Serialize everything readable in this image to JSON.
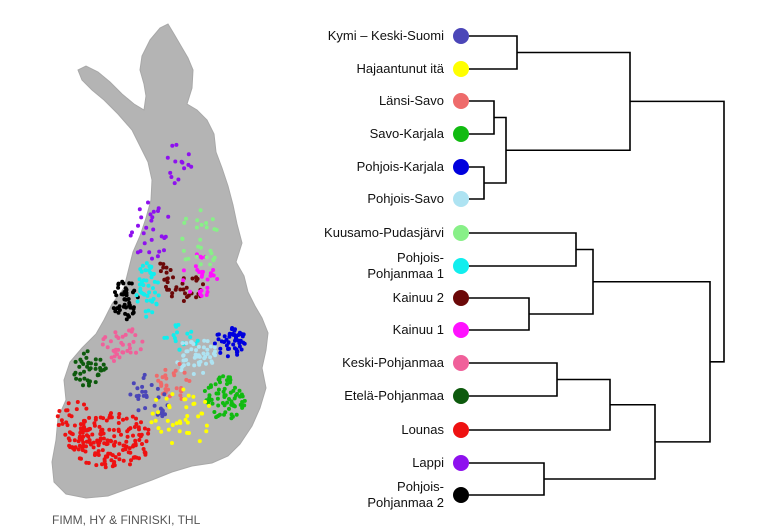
{
  "credit": "FIMM, HY & FINRISKI, THL",
  "regions": [
    {
      "id": "kymi",
      "label": "Kymi – Keski-Suomi",
      "color": "#4b46b8"
    },
    {
      "id": "hajaantunut",
      "label": "Hajaantunut itä",
      "color": "#ffff00"
    },
    {
      "id": "lansisavo",
      "label": "Länsi-Savo",
      "color": "#ee6b6b"
    },
    {
      "id": "savokarjala",
      "label": "Savo-Karjala",
      "color": "#11bb11"
    },
    {
      "id": "pkarjala",
      "label": "Pohjois-Karjala",
      "color": "#0000dd"
    },
    {
      "id": "psavo",
      "label": "Pohjois-Savo",
      "color": "#aee3f2"
    },
    {
      "id": "kuusamo",
      "label": "Kuusamo-Pudasjärvi",
      "color": "#88f088"
    },
    {
      "id": "ppohjanmaa1",
      "label": "Pohjois-\nPohjanmaa 1",
      "color": "#11eeee"
    },
    {
      "id": "kainuu2",
      "label": "Kainuu 2",
      "color": "#6b0808"
    },
    {
      "id": "kainuu1",
      "label": "Kainuu 1",
      "color": "#ff11ff"
    },
    {
      "id": "kpohjanmaa",
      "label": "Keski-Pohjanmaa",
      "color": "#f0609a"
    },
    {
      "id": "etelapohjanmaa",
      "label": "Etelä-Pohjanmaa",
      "color": "#0d5a0d"
    },
    {
      "id": "lounas",
      "label": "Lounas",
      "color": "#ee1111"
    },
    {
      "id": "lappi",
      "label": "Lappi",
      "color": "#8e11ee"
    },
    {
      "id": "ppohjanmaa2",
      "label": "Pohjois-\nPohjanmaa 2",
      "color": "#000000"
    }
  ],
  "icons": {
    "map": "finland-map-icon"
  }
}
